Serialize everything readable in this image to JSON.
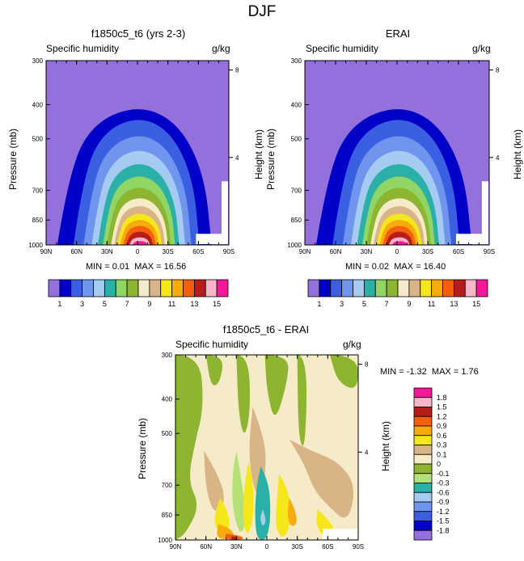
{
  "title": "DJF",
  "colors": {
    "humidity": [
      "#9370db",
      "#0000c8",
      "#3a5fe0",
      "#6f95ee",
      "#a6cbf2",
      "#2ab0a6",
      "#8fd665",
      "#8db530",
      "#f6ebc8",
      "#d8b487",
      "#f5e71a",
      "#f9aa0c",
      "#f55f0a",
      "#b71c1c",
      "#f9b6c8",
      "#f5199a"
    ],
    "diff": [
      "#f5199a",
      "#f9b6c8",
      "#b71c1c",
      "#f55f0a",
      "#f9aa0c",
      "#f5e71a",
      "#d8b487",
      "#f6ebc8",
      "#8db530",
      "#b5e276",
      "#2ab0a6",
      "#a6cbf2",
      "#6f95ee",
      "#3a5fe0",
      "#0000c8",
      "#9370db"
    ]
  },
  "chart_data": [
    {
      "type": "contour",
      "title": "f1850c5_t6 (yrs 2-3)",
      "left_label": "Specific humidity",
      "right_label": "g/kg",
      "ylabel": "Pressure (mb)",
      "y2label": "Height (km)",
      "x_ticks": [
        "90N",
        "60N",
        "30N",
        "0",
        "30S",
        "60S",
        "90S"
      ],
      "y_ticks": [
        "300",
        "400",
        "500",
        "700",
        "850",
        "1000"
      ],
      "y2_ticks": [
        "8",
        "4"
      ],
      "min_label": "MIN =",
      "min_value": "0.01",
      "max_label": "MAX =",
      "max_value": "16.56",
      "max_at_surface": 16.56,
      "colorbar_labels": [
        "1",
        "3",
        "5",
        "7",
        "9",
        "11",
        "13",
        "15"
      ]
    },
    {
      "type": "contour",
      "title": "ERAI",
      "left_label": "Specific humidity",
      "right_label": "g/kg",
      "ylabel": "Pressure (mb)",
      "y2label": "Height (km)",
      "x_ticks": [
        "90N",
        "60N",
        "30N",
        "0",
        "30S",
        "60S",
        "90S"
      ],
      "y_ticks": [
        "300",
        "400",
        "500",
        "700",
        "850",
        "1000"
      ],
      "y2_ticks": [
        "8",
        "4"
      ],
      "min_label": "MIN =",
      "min_value": "0.02",
      "max_label": "MAX =",
      "max_value": "16.40",
      "max_at_surface": 16.4,
      "colorbar_labels": [
        "1",
        "3",
        "5",
        "7",
        "9",
        "11",
        "13",
        "15"
      ]
    },
    {
      "type": "contour",
      "title": "f1850c5_t6 - ERAI",
      "left_label": "Specific humidity",
      "right_label": "g/kg",
      "ylabel": "Pressure (mb)",
      "y2label": "Height (km)",
      "x_ticks": [
        "90N",
        "60N",
        "30N",
        "0",
        "30S",
        "60S",
        "90S"
      ],
      "y_ticks": [
        "300",
        "400",
        "500",
        "700",
        "850",
        "1000"
      ],
      "y2_ticks": [
        "8",
        "4"
      ],
      "min_label": "MIN =",
      "min_value": "-1.32",
      "max_label": "MAX =",
      "max_value": "1.76",
      "colorbar_labels": [
        "1.8",
        "1.5",
        "1.2",
        "0.9",
        "0.6",
        "0.3",
        "0.1",
        "0",
        "-0.1",
        "-0.3",
        "-0.6",
        "-0.9",
        "-1.2",
        "-1.5",
        "-1.8"
      ]
    }
  ]
}
